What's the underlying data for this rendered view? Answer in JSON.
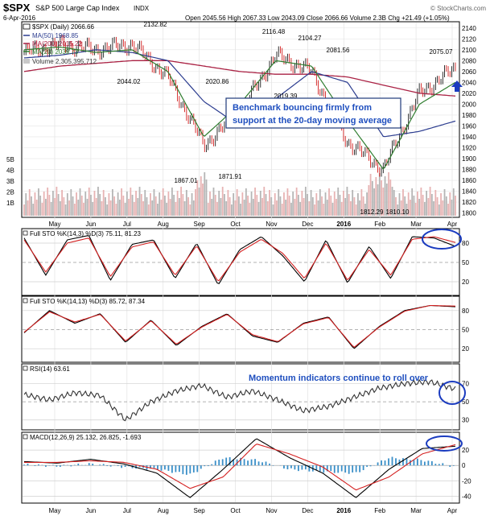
{
  "header": {
    "symbol": "$SPX",
    "name": "S&P 500 Large Cap Index",
    "exchange": "INDX",
    "date": "6-Apr-2016",
    "ohlc": "Open 2045.56  High 2067.33  Low 2043.09  Close 2066.66  Volume 2.3B  Chg +21.49 (+1.05%)",
    "watermark": "© StockCharts.com"
  },
  "legend": {
    "price": "$SPX (Daily) 2066.66",
    "ma50": "MA(50) 1968.85",
    "ma200": "MA(200) 2015.22",
    "ma20": "MA(20) 2039.73",
    "volume": "Volume 2,305,395,712"
  },
  "annotations": {
    "callout": [
      "Benchmark bouncing firmly from",
      "support at the 20-day moving average"
    ],
    "momentum": "Momentum indicators continue to roll over"
  },
  "month_labels": [
    "May",
    "Jun",
    "Jul",
    "Aug",
    "Sep",
    "Oct",
    "Nov",
    "Dec",
    "2016",
    "Feb",
    "Mar",
    "Apr"
  ],
  "colors": {
    "price_up": "#000000",
    "price_down": "#cc0000",
    "ma50": "#2b3c8f",
    "ma200": "#aa2244",
    "ma20": "#2f7d2f",
    "volume": "#c8c8c8",
    "callout_border": "#1f3a7a",
    "callout_text": "#1f4fbf",
    "circle": "#1a3bbf",
    "macd_hist": "#3a8fc8"
  },
  "chart_data": [
    {
      "type": "line",
      "title": "$SPX S&P 500 Large Cap Index INDX",
      "x": [
        "2015-04",
        "2015-05",
        "2015-06",
        "2015-07",
        "2015-08",
        "2015-09",
        "2015-10",
        "2015-11",
        "2015-12",
        "2016-01",
        "2016-02",
        "2016-03",
        "2016-04"
      ],
      "series": [
        {
          "name": "$SPX (Daily)",
          "values": [
            2095,
            2110,
            2100,
            2110,
            2050,
            1925,
            1985,
            2090,
            2060,
            1930,
            1880,
            2020,
            2066
          ]
        },
        {
          "name": "MA(50)",
          "values": [
            2085,
            2090,
            2100,
            2095,
            2080,
            2005,
            1960,
            2010,
            2060,
            2040,
            1940,
            1950,
            1969
          ]
        },
        {
          "name": "MA(200)",
          "values": [
            2060,
            2070,
            2075,
            2080,
            2080,
            2070,
            2060,
            2055,
            2055,
            2050,
            2035,
            2020,
            2015
          ]
        },
        {
          "name": "MA(20)",
          "values": [
            2100,
            2105,
            2095,
            2100,
            2060,
            1940,
            2000,
            2080,
            2070,
            1970,
            1880,
            2000,
            2040
          ]
        }
      ],
      "price_labels": [
        "2132.82",
        "2044.02",
        "2020.86",
        "1867.01",
        "1871.91",
        "2116.48",
        "2019.39",
        "2104.27",
        "2081.56",
        "1812.29",
        "1810.10",
        "2075.07"
      ],
      "y_ticks": [
        1800,
        1820,
        1840,
        1860,
        1880,
        1900,
        1920,
        1940,
        1960,
        1980,
        2000,
        2020,
        2040,
        2060,
        2080,
        2100,
        2120,
        2140
      ],
      "volume_ticks": [
        "5B",
        "4B",
        "3B",
        "2B",
        "1B"
      ],
      "ylim": [
        1795,
        2150
      ]
    },
    {
      "type": "line",
      "title": "Full STO %K(14,3) %D(3) 75.11, 81.23",
      "series": [
        {
          "name": "%K(14,3)",
          "values": [
            88,
            30,
            85,
            92,
            22,
            78,
            85,
            25,
            80,
            15,
            70,
            90,
            60,
            20,
            85,
            18,
            75,
            25,
            90,
            88,
            75
          ]
        },
        {
          "name": "%D(3)",
          "values": [
            85,
            35,
            80,
            88,
            28,
            74,
            82,
            30,
            76,
            20,
            66,
            86,
            64,
            25,
            80,
            22,
            70,
            30,
            86,
            90,
            81
          ]
        }
      ],
      "last_values": {
        "k": "75.11",
        "d": "81.23"
      },
      "y_ticks": [
        20,
        50,
        80
      ],
      "ylim": [
        0,
        100
      ]
    },
    {
      "type": "line",
      "title": "Full STO %K(14,13) %D(3) 85.72, 87.34",
      "series": [
        {
          "name": "%K(14,13)",
          "values": [
            45,
            80,
            60,
            75,
            30,
            65,
            25,
            55,
            75,
            40,
            30,
            60,
            70,
            20,
            55,
            80,
            88,
            86
          ]
        },
        {
          "name": "%D(3)",
          "values": [
            46,
            78,
            62,
            74,
            32,
            64,
            27,
            54,
            74,
            42,
            31,
            59,
            69,
            22,
            54,
            79,
            88,
            87
          ]
        }
      ],
      "last_values": {
        "k": "85.72",
        "d": "87.34"
      },
      "y_ticks": [
        20,
        50,
        80
      ],
      "ylim": [
        0,
        100
      ]
    },
    {
      "type": "line",
      "title": "RSI(14) 63.61",
      "series": [
        {
          "name": "RSI(14)",
          "values": [
            58,
            52,
            60,
            57,
            30,
            50,
            62,
            68,
            55,
            62,
            52,
            40,
            45,
            55,
            65,
            70,
            72,
            64
          ]
        }
      ],
      "last_value": "63.61",
      "y_ticks": [
        30,
        50,
        70
      ],
      "ylim": [
        20,
        90
      ]
    },
    {
      "type": "line",
      "title": "MACD(12,26,9) 25.132, 26.825, -1.693",
      "series": [
        {
          "name": "MACD(12,26,9)",
          "values": [
            5,
            3,
            8,
            2,
            -10,
            -42,
            -5,
            35,
            10,
            -10,
            -42,
            -5,
            22,
            25
          ]
        },
        {
          "name": "Signal",
          "values": [
            4,
            4,
            6,
            4,
            -5,
            -30,
            -15,
            28,
            15,
            -2,
            -32,
            -15,
            15,
            27
          ]
        },
        {
          "name": "Histogram",
          "values": [
            1,
            -1,
            2,
            -2,
            -5,
            -12,
            10,
            7,
            -5,
            -8,
            -10,
            10,
            7,
            -2
          ]
        }
      ],
      "last_values": {
        "macd": "25.132",
        "signal": "26.825",
        "hist": "-1.693"
      },
      "y_ticks": [
        -40,
        -20,
        0,
        20
      ],
      "ylim": [
        -48,
        40
      ]
    }
  ]
}
